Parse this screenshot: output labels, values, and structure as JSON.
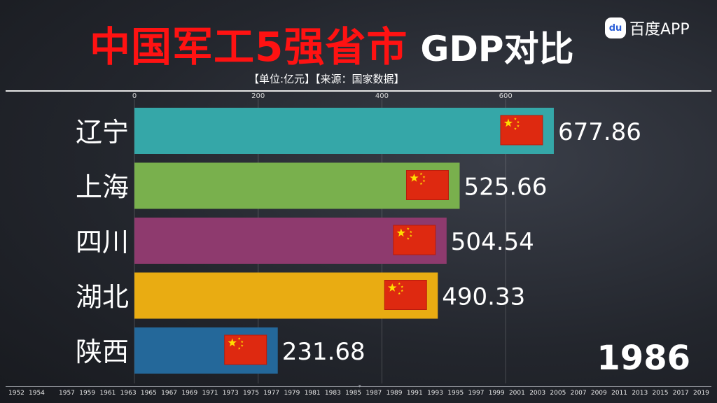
{
  "title": {
    "main": "中国军工5强省市",
    "suffix": "GDP对比"
  },
  "brand": {
    "icon": "baidu-paw-icon",
    "icon_text": "du",
    "label": "百度APP"
  },
  "subtitle": "【单位:亿元】【来源：国家数据】",
  "current_year": "1986",
  "timeline_years": [
    "1952",
    "1954",
    "1957",
    "1959",
    "1961",
    "1963",
    "1965",
    "1967",
    "1969",
    "1971",
    "1973",
    "1975",
    "1977",
    "1979",
    "1981",
    "1983",
    "1985",
    "1987",
    "1989",
    "1991",
    "1993",
    "1995",
    "1997",
    "1999",
    "2001",
    "2003",
    "2005",
    "2007",
    "2009",
    "2011",
    "2013",
    "2015",
    "2017",
    "2019"
  ],
  "chart_data": {
    "type": "bar",
    "orientation": "horizontal",
    "categories": [
      "辽宁",
      "上海",
      "四川",
      "湖北",
      "陕西"
    ],
    "values": [
      677.86,
      525.66,
      504.54,
      490.33,
      231.68
    ],
    "value_labels": [
      "677.86",
      "525.66",
      "504.54",
      "490.33",
      "231.68"
    ],
    "colors": [
      "#35a7a8",
      "#79b04d",
      "#8e3a6e",
      "#e9ac12",
      "#24689a"
    ],
    "flag_icon": "china-flag-icon",
    "xlim": [
      0,
      750
    ],
    "ticks": [
      0,
      200,
      400,
      600
    ],
    "tick_labels": [
      "0",
      "200",
      "400",
      "600"
    ],
    "grid": true,
    "legend": "none"
  }
}
